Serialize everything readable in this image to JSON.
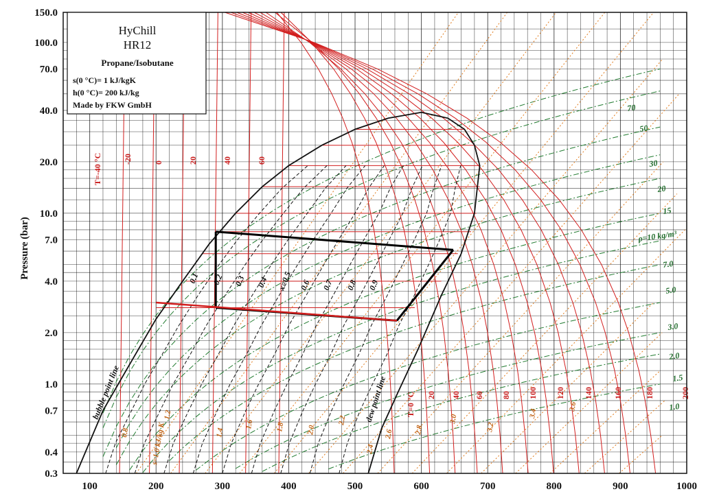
{
  "chart_data": {
    "type": "line",
    "title": "",
    "xlabel": "",
    "ylabel": "Pressure (bar)",
    "x_ticks": [
      "100",
      "200",
      "300",
      "400",
      "500",
      "600",
      "700",
      "800",
      "900",
      "1000"
    ],
    "xlim": [
      60,
      1000
    ],
    "y_scale": "log",
    "y_ticks": [
      "0.3",
      "0.4",
      "0.7",
      "1.0",
      "2.0",
      "4.0",
      "7.0",
      "10.0",
      "20.0",
      "40.0",
      "70.0",
      "100.0",
      "150.0"
    ],
    "ylim": [
      0.3,
      150
    ],
    "grid": true,
    "legend": {
      "position": "top-left",
      "lines": [
        "HyChill",
        "HR12",
        "Propane/Isobutane",
        "s(0 °C)= 1 kJ/kgK",
        "h(0 °C)= 200 kJ/kg",
        "Made by FKW GmbH"
      ]
    },
    "saturation_dome": {
      "bubble_point_line": {
        "label": "bubble point line",
        "x": [
          80,
          120,
          160,
          200,
          240,
          280,
          320,
          360,
          400,
          450,
          500,
          550,
          600
        ],
        "y": [
          0.3,
          0.7,
          1.3,
          2.4,
          4.0,
          6.6,
          10.0,
          14.3,
          19.0,
          25.0,
          31.0,
          36.0,
          39.0
        ]
      },
      "dew_point_line": {
        "label": "dew point line",
        "x": [
          600,
          640,
          665,
          680,
          688,
          680,
          660,
          630,
          595,
          565,
          540,
          520
        ],
        "y": [
          39.0,
          36.0,
          31.0,
          25.0,
          19.0,
          10.0,
          5.8,
          3.3,
          1.6,
          0.9,
          0.55,
          0.3
        ]
      }
    },
    "quality_lines": {
      "labels": [
        "0.1",
        "0.2",
        "0.3",
        "0.4",
        "x=0.5",
        "0.6",
        "0.7",
        "0.8",
        "0.9"
      ]
    },
    "isotherms": {
      "labels_upper": [
        "T=-40 °C",
        "-20",
        "0",
        "20",
        "40",
        "60"
      ],
      "labels_lower": [
        "T=0 °C",
        "20",
        "40",
        "60",
        "80",
        "100",
        "120",
        "140",
        "160",
        "180",
        "200"
      ]
    },
    "isochores": {
      "labels": [
        "70",
        "50",
        "30",
        "20",
        "15",
        "ρ=10 kg/m³",
        "7.0",
        "5.0",
        "3.0",
        "2.0",
        "1.5",
        "1.0"
      ]
    },
    "isentropes": {
      "labels": [
        "0.8",
        "s=1.0 kJ/kg K",
        "1.2",
        "1.4",
        "1.6",
        "1.8",
        "2.0",
        "2.2",
        "2.4",
        "2.6",
        "2.8",
        "3.0",
        "3.2",
        "3.4",
        "3.6"
      ]
    },
    "cycle": {
      "x": [
        290,
        290,
        648,
        563,
        290
      ],
      "y": [
        7.8,
        2.8,
        6.1,
        2.35,
        2.8
      ]
    }
  }
}
